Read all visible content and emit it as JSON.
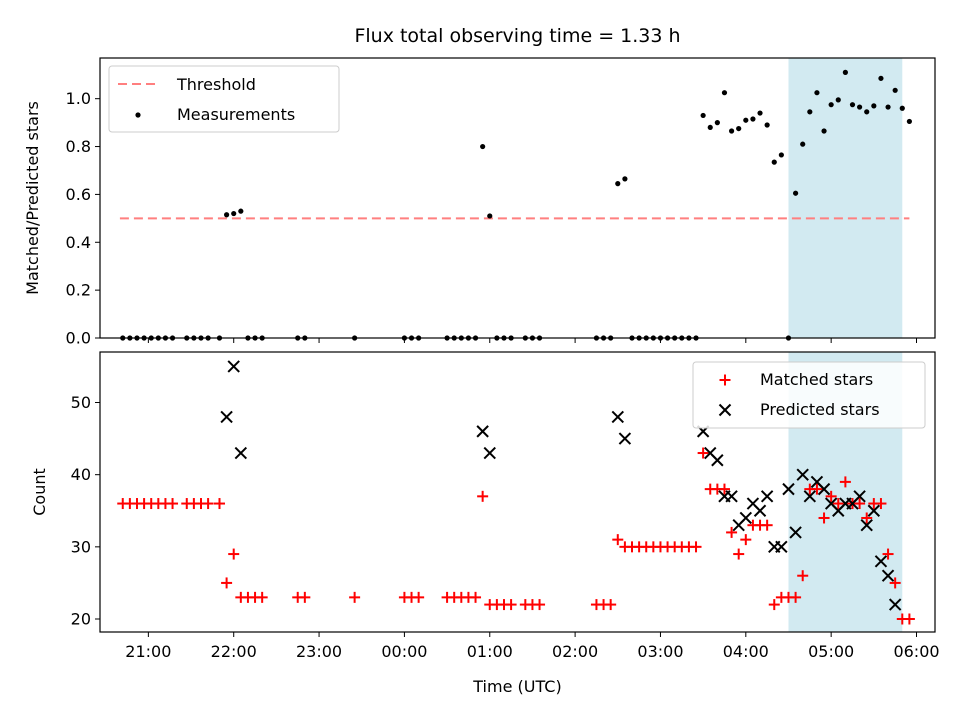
{
  "title": "Flux total observing time = 1.33 h",
  "colors": {
    "threshold": "#ff7f7f",
    "measurement": "#000000",
    "matched": "#ff0000",
    "predicted": "#000000",
    "span_fill": "#add8e6"
  },
  "chart_data": [
    {
      "type": "scatter",
      "title": "Flux total observing time = 1.33 h",
      "xlabel": "",
      "ylabel": "Matched/Predicted stars",
      "ylim": [
        0,
        1.17
      ],
      "xlim": [
        "20:26",
        "06:13"
      ],
      "yticks": [
        "0.0",
        "0.2",
        "0.4",
        "0.6",
        "0.8",
        "1.0"
      ],
      "highlight_span": [
        "04:30",
        "05:50"
      ],
      "legend_position": "upper left",
      "legend": [
        "Threshold",
        "Measurements"
      ],
      "series": [
        {
          "name": "Threshold",
          "kind": "dashed-line",
          "x": [
            "20:40",
            "05:55"
          ],
          "y": [
            0.5,
            0.5
          ]
        },
        {
          "name": "Measurements",
          "kind": "point",
          "x": [
            "20:42",
            "20:47",
            "20:52",
            "20:57",
            "21:02",
            "21:07",
            "21:12",
            "21:17",
            "21:27",
            "21:32",
            "21:37",
            "21:42",
            "21:50",
            "21:55",
            "22:00",
            "22:05",
            "22:10",
            "22:15",
            "22:20",
            "22:45",
            "22:50",
            "23:25",
            "00:00",
            "00:05",
            "00:10",
            "00:30",
            "00:35",
            "00:40",
            "00:45",
            "00:50",
            "00:55",
            "01:00",
            "01:05",
            "01:10",
            "01:15",
            "01:25",
            "01:30",
            "01:35",
            "02:15",
            "02:20",
            "02:25",
            "02:30",
            "02:35",
            "02:40",
            "02:45",
            "02:50",
            "02:55",
            "03:00",
            "03:05",
            "03:10",
            "03:15",
            "03:20",
            "03:25",
            "03:30",
            "03:35",
            "03:40",
            "03:45",
            "03:50",
            "03:55",
            "04:00",
            "04:05",
            "04:10",
            "04:15",
            "04:20",
            "04:25",
            "04:30",
            "04:35",
            "04:40",
            "04:45",
            "04:50",
            "04:55",
            "05:00",
            "05:05",
            "05:10",
            "05:15",
            "05:20",
            "05:25",
            "05:30",
            "05:35",
            "05:40",
            "05:45",
            "05:50",
            "05:55"
          ],
          "y": [
            0.0,
            0.0,
            0.0,
            0.0,
            0.0,
            0.0,
            0.0,
            0.0,
            0.0,
            0.0,
            0.0,
            0.0,
            0.0,
            0.515,
            0.52,
            0.53,
            0.0,
            0.0,
            0.0,
            0.0,
            0.0,
            0.0,
            0.0,
            0.0,
            0.0,
            0.0,
            0.0,
            0.0,
            0.0,
            0.0,
            0.8,
            0.51,
            0.0,
            0.0,
            0.0,
            0.0,
            0.0,
            0.0,
            0.0,
            0.0,
            0.0,
            0.645,
            0.665,
            0.0,
            0.0,
            0.0,
            0.0,
            0.0,
            0.0,
            0.0,
            0.0,
            0.0,
            0.0,
            0.93,
            0.88,
            0.9,
            1.025,
            0.865,
            0.875,
            0.91,
            0.915,
            0.94,
            0.89,
            0.735,
            0.765,
            0.0,
            0.605,
            0.81,
            0.945,
            1.025,
            0.865,
            0.975,
            0.995,
            1.11,
            0.975,
            0.965,
            0.945,
            0.97,
            1.085,
            0.965,
            1.035,
            0.96,
            0.905
          ]
        }
      ]
    },
    {
      "type": "scatter",
      "title": "",
      "xlabel": "Time (UTC)",
      "ylabel": "Count",
      "ylim": [
        18.2,
        57
      ],
      "xlim": [
        "20:26",
        "06:13"
      ],
      "xticks": [
        "21:00",
        "22:00",
        "23:00",
        "00:00",
        "01:00",
        "02:00",
        "03:00",
        "04:00",
        "05:00",
        "06:00"
      ],
      "yticks": [
        "20",
        "30",
        "40",
        "50"
      ],
      "highlight_span": [
        "04:30",
        "05:50"
      ],
      "legend_position": "upper right",
      "legend": [
        "Matched stars",
        "Predicted stars"
      ],
      "series": [
        {
          "name": "Matched stars",
          "kind": "plus",
          "x": [
            "20:42",
            "20:47",
            "20:52",
            "20:57",
            "21:02",
            "21:07",
            "21:12",
            "21:17",
            "21:27",
            "21:32",
            "21:37",
            "21:42",
            "21:50",
            "21:55",
            "22:00",
            "22:05",
            "22:10",
            "22:15",
            "22:20",
            "22:45",
            "22:50",
            "23:25",
            "00:00",
            "00:05",
            "00:10",
            "00:30",
            "00:35",
            "00:40",
            "00:45",
            "00:50",
            "00:55",
            "01:00",
            "01:05",
            "01:10",
            "01:15",
            "01:25",
            "01:30",
            "01:35",
            "02:15",
            "02:20",
            "02:25",
            "02:30",
            "02:35",
            "02:40",
            "02:45",
            "02:50",
            "02:55",
            "03:00",
            "03:05",
            "03:10",
            "03:15",
            "03:20",
            "03:25",
            "03:30",
            "03:35",
            "03:40",
            "03:45",
            "03:50",
            "03:55",
            "04:00",
            "04:05",
            "04:10",
            "04:15",
            "04:20",
            "04:25",
            "04:30",
            "04:35",
            "04:40",
            "04:45",
            "04:50",
            "04:55",
            "05:00",
            "05:05",
            "05:10",
            "05:15",
            "05:20",
            "05:25",
            "05:30",
            "05:35",
            "05:40",
            "05:45",
            "05:50",
            "05:55"
          ],
          "y": [
            36,
            36,
            36,
            36,
            36,
            36,
            36,
            36,
            36,
            36,
            36,
            36,
            36,
            25,
            29,
            23,
            23,
            23,
            23,
            23,
            23,
            23,
            23,
            23,
            23,
            23,
            23,
            23,
            23,
            23,
            37,
            22,
            22,
            22,
            22,
            22,
            22,
            22,
            22,
            22,
            22,
            31,
            30,
            30,
            30,
            30,
            30,
            30,
            30,
            30,
            30,
            30,
            30,
            43,
            38,
            38,
            38,
            32,
            29,
            31,
            33,
            33,
            33,
            22,
            23,
            23,
            23,
            26,
            38,
            38,
            34,
            37,
            36,
            39,
            36,
            36,
            34,
            36,
            36,
            29,
            25,
            20,
            20
          ]
        },
        {
          "name": "Predicted stars",
          "kind": "x",
          "x": [
            "21:55",
            "22:00",
            "22:05",
            "00:55",
            "01:00",
            "02:30",
            "02:35",
            "03:30",
            "03:35",
            "03:40",
            "03:45",
            "03:50",
            "03:55",
            "04:00",
            "04:05",
            "04:10",
            "04:15",
            "04:20",
            "04:25",
            "04:30",
            "04:35",
            "04:40",
            "04:45",
            "04:50",
            "04:55",
            "05:00",
            "05:05",
            "05:10",
            "05:15",
            "05:20",
            "05:25",
            "05:30",
            "05:35",
            "05:40",
            "05:45",
            "05:50",
            "05:55"
          ],
          "y": [
            48,
            55,
            43,
            46,
            43,
            48,
            45,
            46,
            43,
            42,
            37,
            37,
            33,
            34,
            36,
            35,
            37,
            30,
            30,
            38,
            32,
            40,
            37,
            39,
            38,
            36,
            35,
            36,
            36,
            37,
            33,
            35,
            28,
            26,
            22,
            null,
            null
          ]
        }
      ]
    }
  ]
}
